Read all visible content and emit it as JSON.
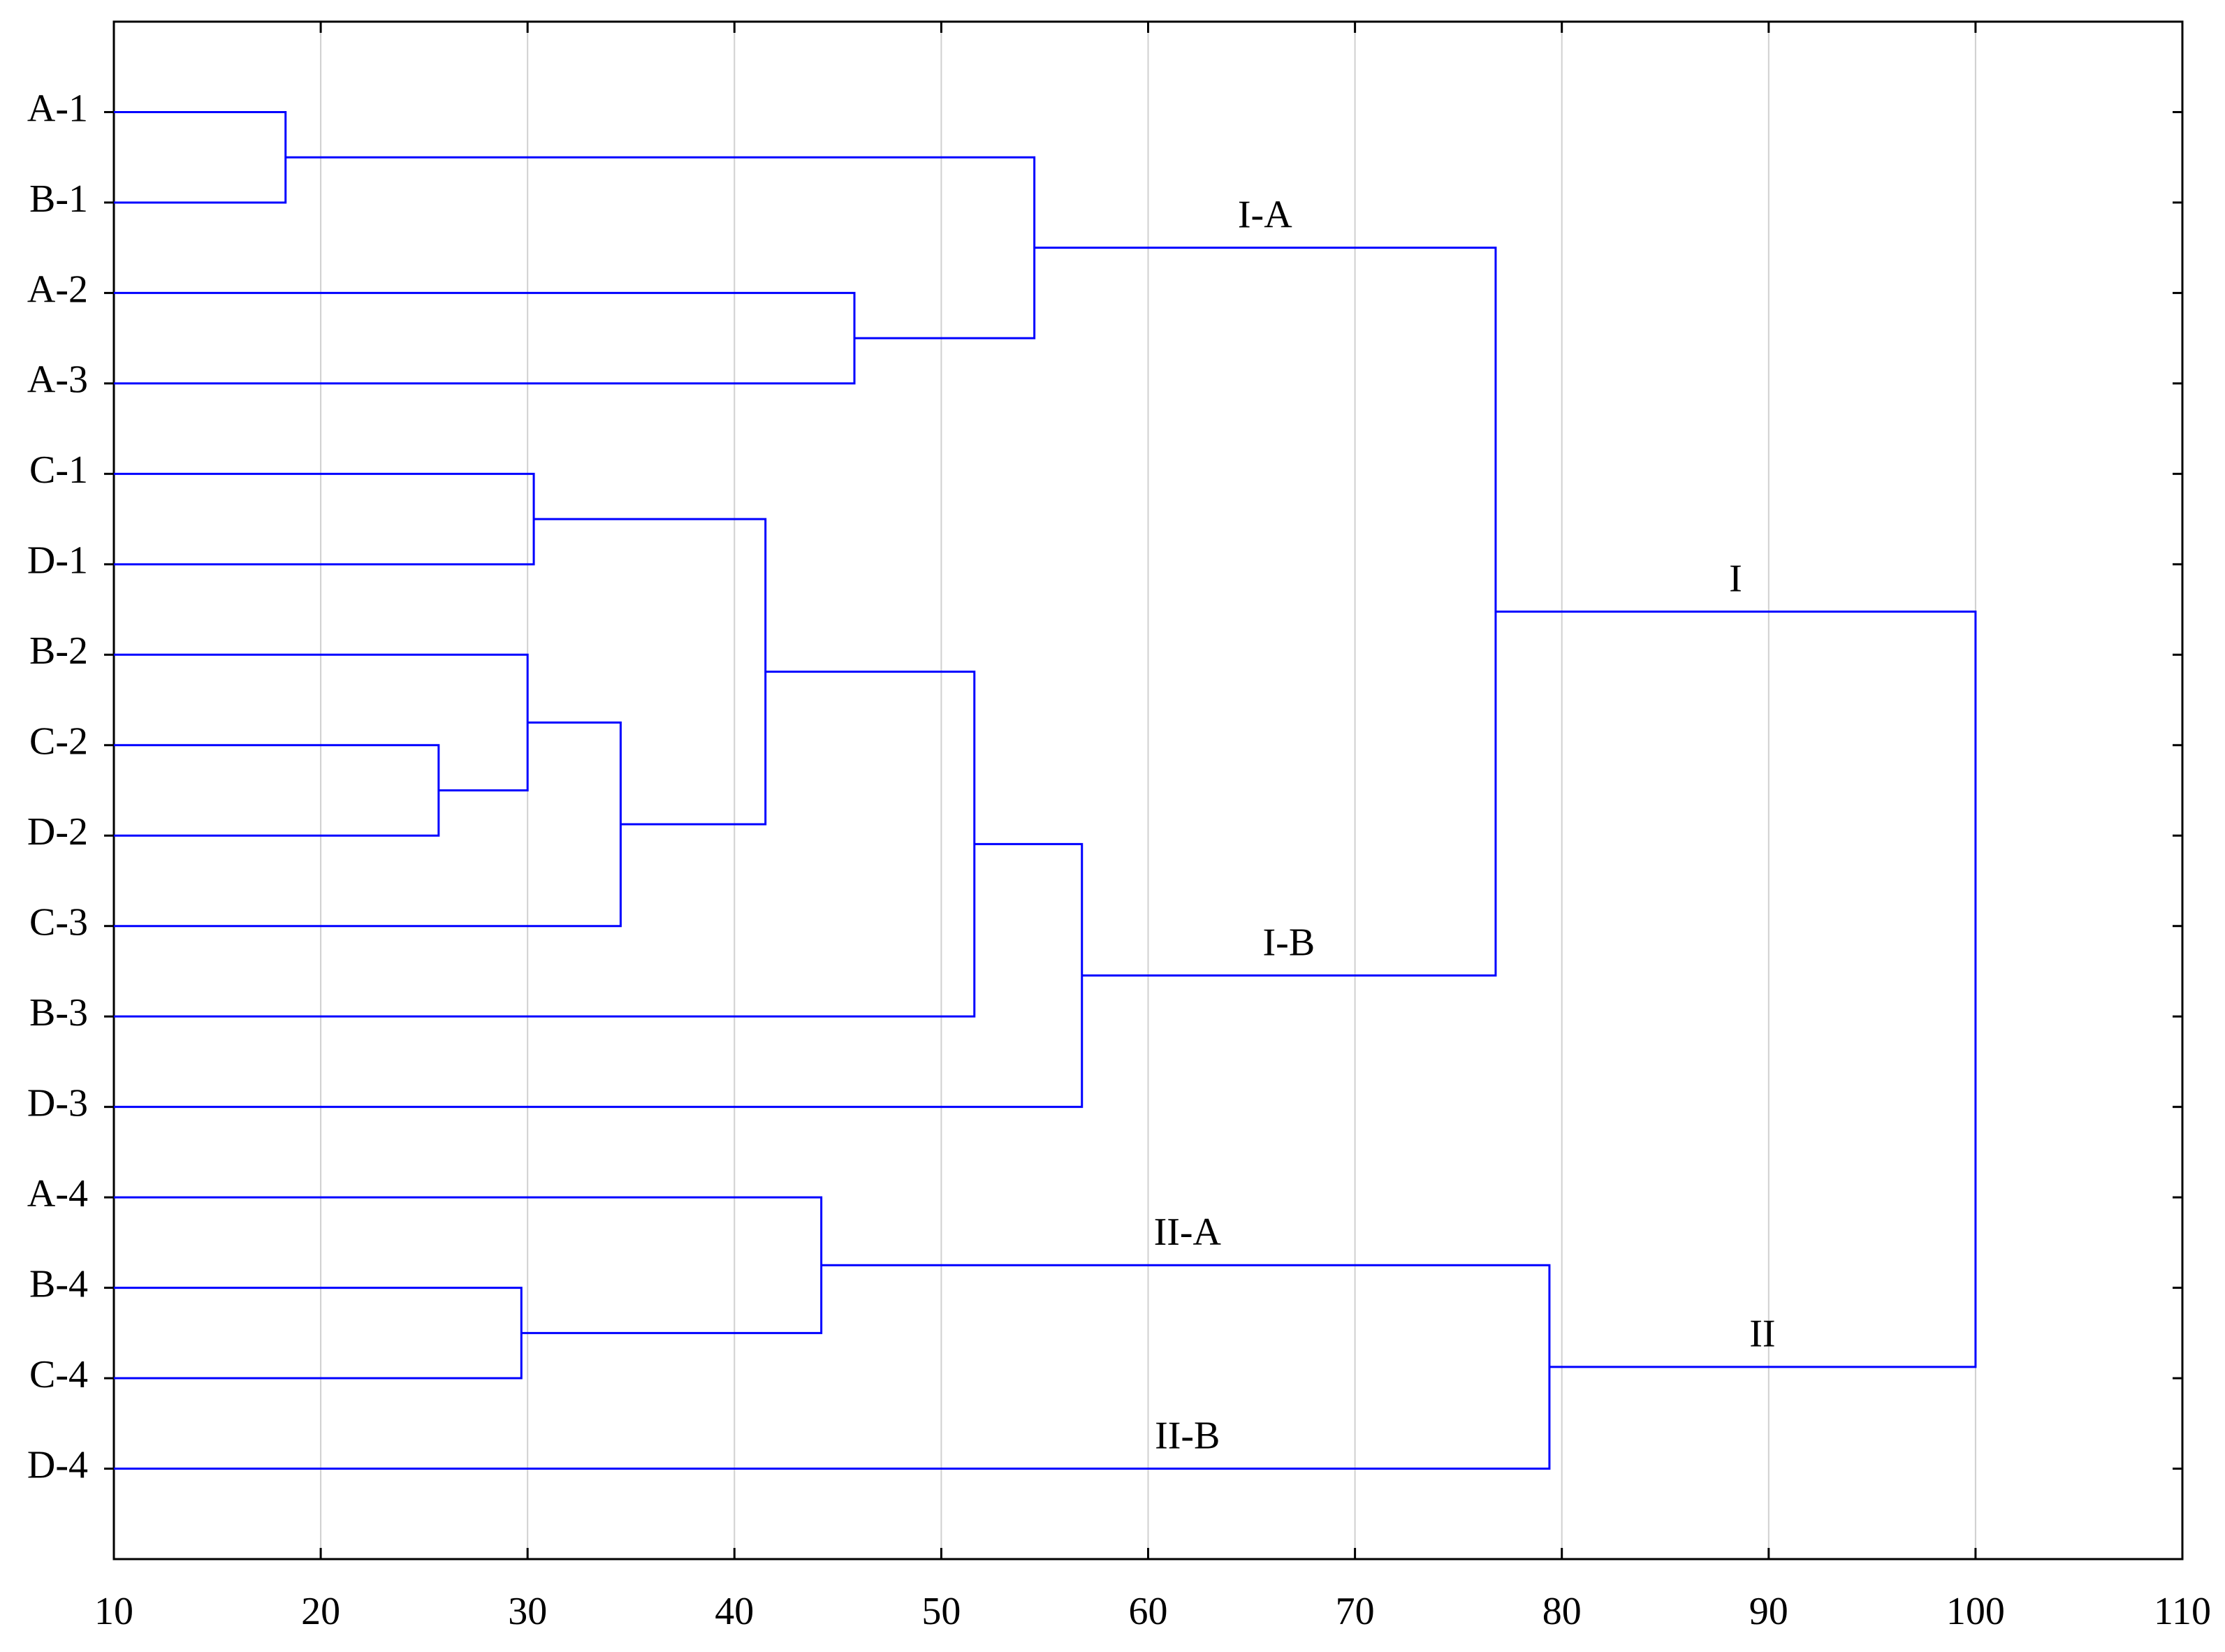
{
  "chart_data": {
    "type": "dendrogram",
    "xlim": [
      10,
      110
    ],
    "xticks": [
      10,
      20,
      30,
      40,
      50,
      60,
      70,
      80,
      90,
      100,
      110
    ],
    "grid": true,
    "color": "#0000ff",
    "tree": {
      "height": 100,
      "children": [
        {
          "height": 76.8,
          "label": "I",
          "children": [
            {
              "height": 54.5,
              "label": "I-A",
              "children": [
                {
                  "height": 18.3,
                  "children": [
                    {
                      "name": "A-1"
                    },
                    {
                      "name": "B-1"
                    }
                  ]
                },
                {
                  "height": 45.8,
                  "children": [
                    {
                      "name": "A-2"
                    },
                    {
                      "name": "A-3"
                    }
                  ]
                }
              ]
            },
            {
              "height": 56.8,
              "label": "I-B",
              "children": [
                {
                  "height": 51.6,
                  "children": [
                    {
                      "height": 41.5,
                      "children": [
                        {
                          "height": 30.3,
                          "children": [
                            {
                              "name": "C-1"
                            },
                            {
                              "name": "D-1"
                            }
                          ]
                        },
                        {
                          "height": 34.5,
                          "children": [
                            {
                              "height": 30.0,
                              "children": [
                                {
                                  "name": "B-2"
                                },
                                {
                                  "height": 25.7,
                                  "children": [
                                    {
                                      "name": "C-2"
                                    },
                                    {
                                      "name": "D-2"
                                    }
                                  ]
                                }
                              ]
                            },
                            {
                              "name": "C-3"
                            }
                          ]
                        }
                      ]
                    },
                    {
                      "name": "B-3"
                    }
                  ]
                },
                {
                  "name": "D-3"
                }
              ]
            }
          ]
        },
        {
          "height": 79.4,
          "label": "II",
          "children": [
            {
              "height": 44.2,
              "label": "II-A",
              "children": [
                {
                  "name": "A-4"
                },
                {
                  "height": 29.7,
                  "children": [
                    {
                      "name": "B-4"
                    },
                    {
                      "name": "C-4"
                    }
                  ]
                }
              ]
            },
            {
              "name": "D-4",
              "label": "II-B"
            }
          ]
        }
      ]
    }
  }
}
